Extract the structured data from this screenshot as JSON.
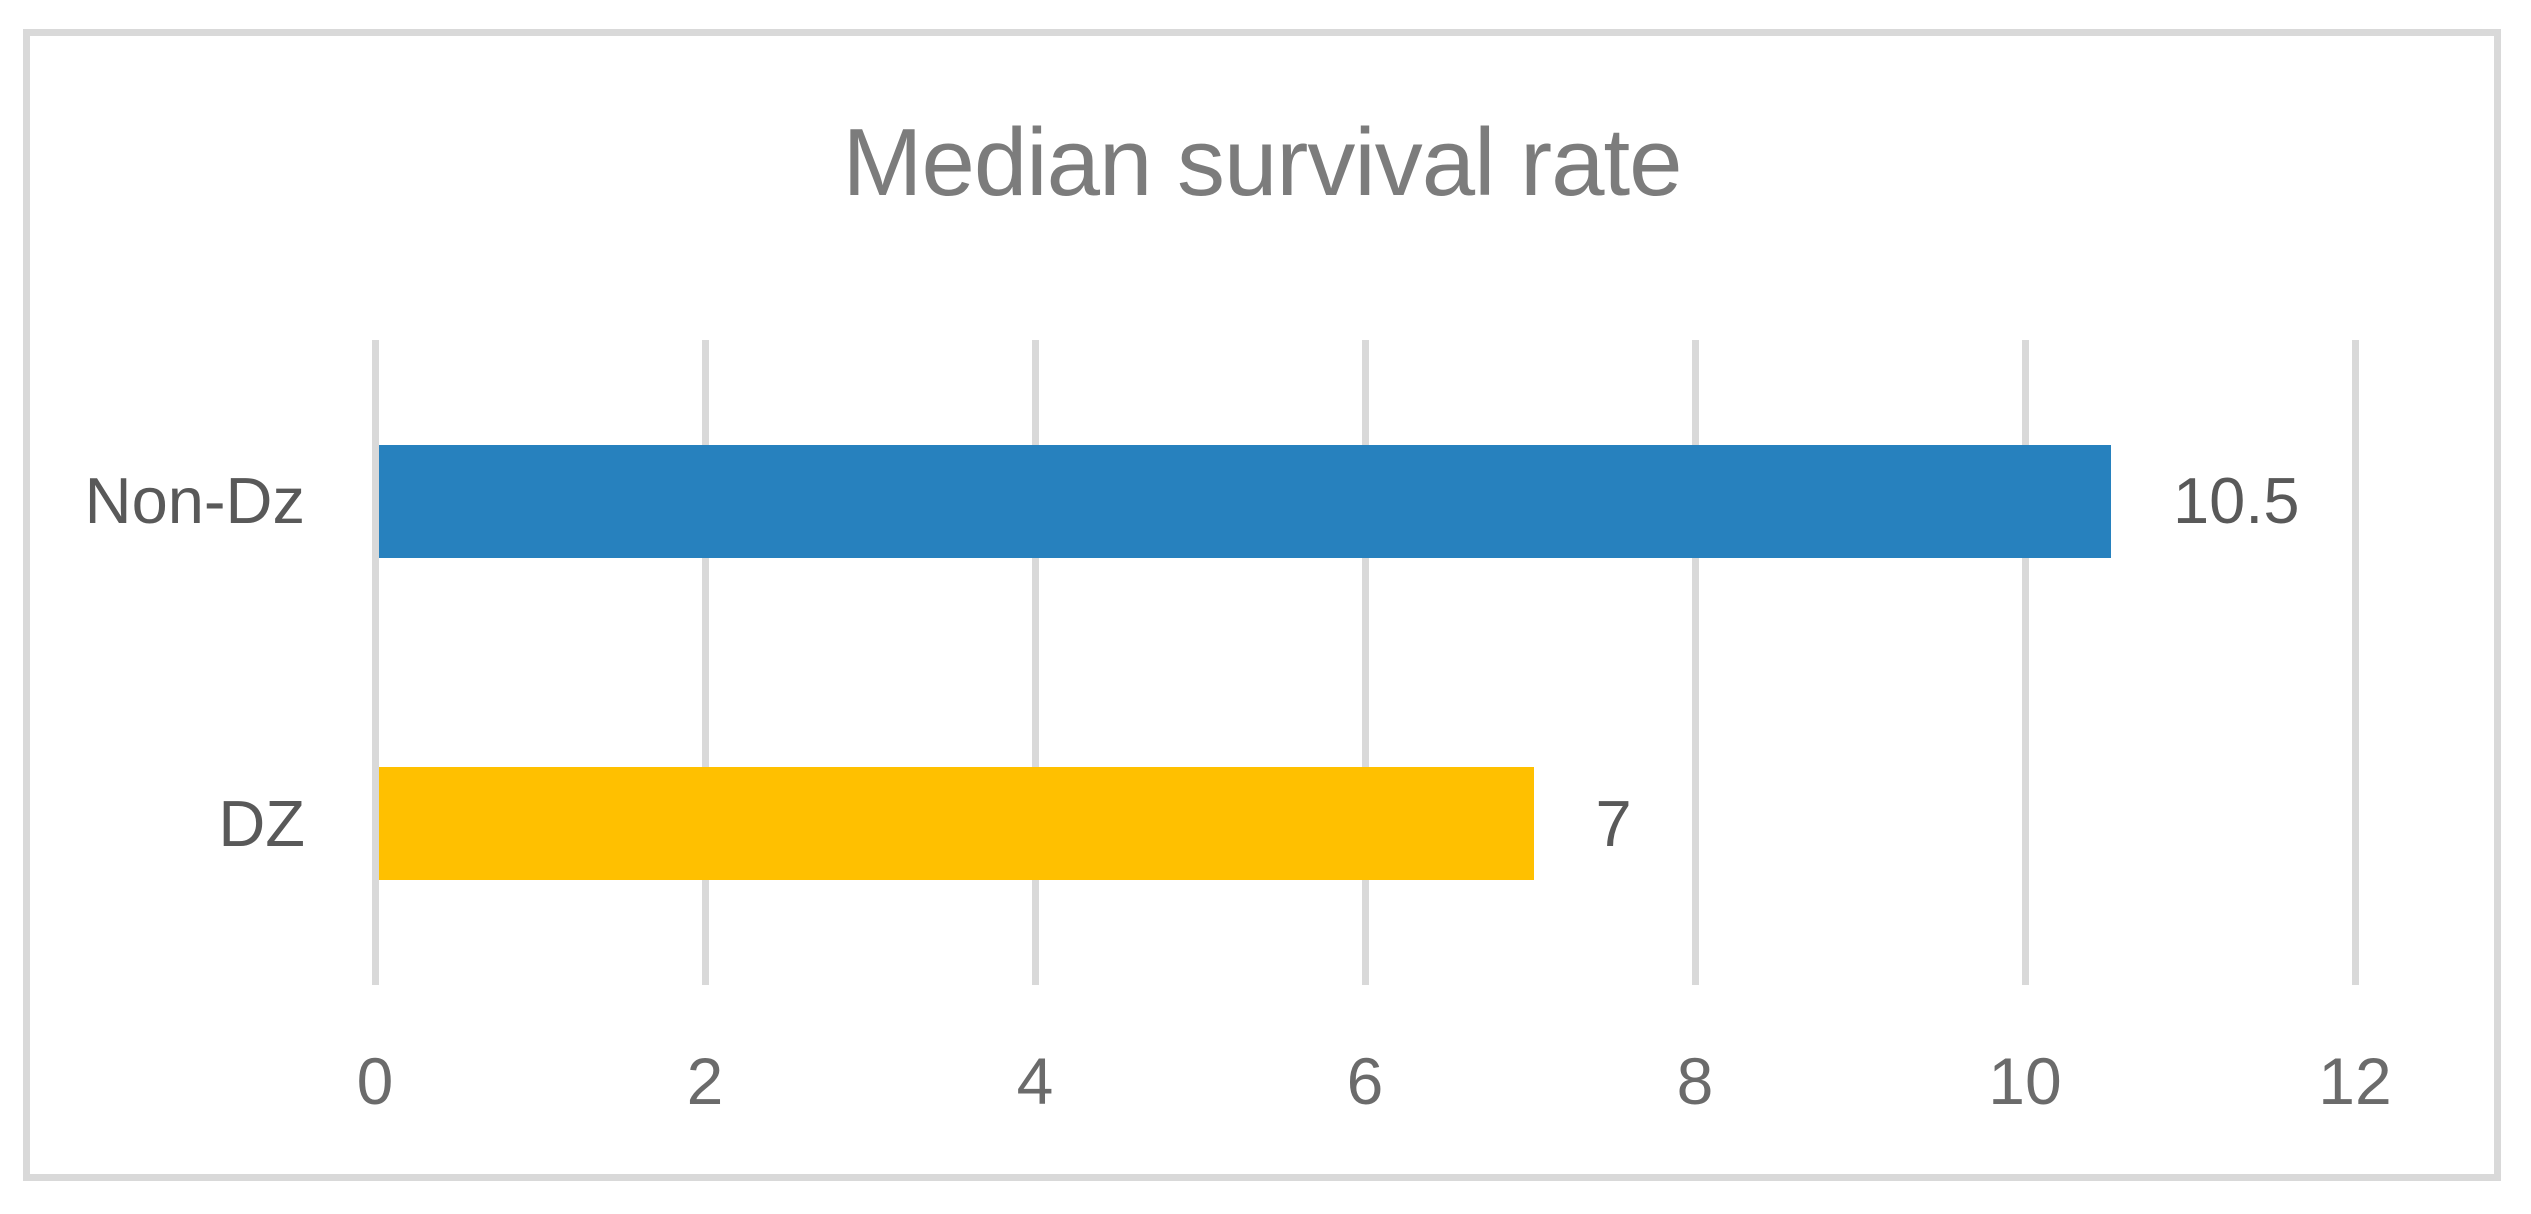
{
  "chart_data": {
    "type": "bar",
    "orientation": "horizontal",
    "title": "Median survival rate",
    "categories": [
      "Non-Dz",
      "DZ"
    ],
    "values": [
      10.5,
      7
    ],
    "data_labels": [
      "10.5",
      "7"
    ],
    "series": [
      {
        "name": "Median survival rate",
        "values": [
          10.5,
          7
        ]
      }
    ],
    "bar_colors": [
      "#2781be",
      "#ffc000"
    ],
    "xlabel": "",
    "ylabel": "",
    "xlim": [
      0,
      12
    ],
    "xticks": [
      0,
      2,
      4,
      6,
      8,
      10,
      12
    ],
    "grid": true,
    "legend_position": "none"
  },
  "colors": {
    "background": "#ffffff",
    "frame_border": "#d9d9d9",
    "gridline": "#d9d9d9",
    "title_text": "#7c7c7c",
    "label_text": "#595959",
    "tick_text": "#6b6b6b"
  }
}
